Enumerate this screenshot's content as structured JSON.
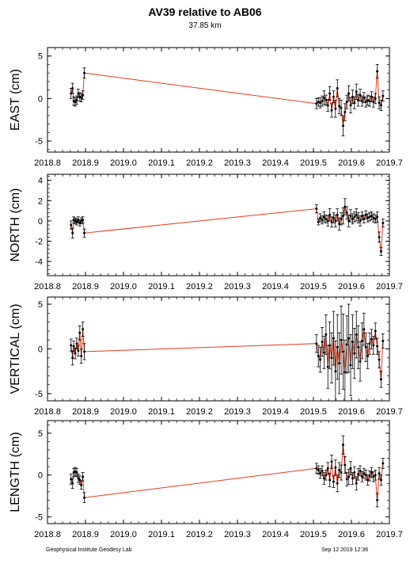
{
  "header": {
    "title": "AV39 relative to AB06",
    "subtitle": "37.85 km"
  },
  "footer": {
    "left": "Geophysical Institute Geodesy Lab",
    "right": "Sep 12 2019 12:36"
  },
  "style": {
    "line_color": "#e8391a",
    "point_color": "#000000",
    "errorbar_color": "#000000"
  },
  "chart_data": [
    {
      "type": "scatter",
      "ylabel": "EAST (cm)",
      "xlim": [
        2018.8,
        2019.7
      ],
      "ylim": [
        -6.3,
        6
      ],
      "xticks": [
        2018.8,
        2018.9,
        2019.0,
        2019.1,
        2019.2,
        2019.3,
        2019.4,
        2019.5,
        2019.6,
        2019.7
      ],
      "xticklabels": [
        "2018.8",
        "2018.9",
        "2019.0",
        "2019.1",
        "2019.2",
        "2019.3",
        "2019.4",
        "2019.5",
        "2019.6",
        "2019.7"
      ],
      "yticks": [
        -5,
        0,
        5
      ],
      "yticklabels": [
        "-5",
        "0",
        "5"
      ],
      "x": [
        2018.862,
        2018.866,
        2018.869,
        2018.873,
        2018.877,
        2018.881,
        2018.885,
        2018.889,
        2018.893,
        2018.897,
        2019.508,
        2019.513,
        2019.518,
        2019.523,
        2019.528,
        2019.533,
        2019.538,
        2019.543,
        2019.548,
        2019.553,
        2019.558,
        2019.563,
        2019.568,
        2019.573,
        2019.578,
        2019.583,
        2019.588,
        2019.593,
        2019.598,
        2019.603,
        2019.608,
        2019.613,
        2019.618,
        2019.623,
        2019.628,
        2019.633,
        2019.638,
        2019.643,
        2019.648,
        2019.653,
        2019.658,
        2019.663,
        2019.668,
        2019.673,
        2019.678,
        2019.683
      ],
      "y": [
        0.6,
        1.2,
        -0.3,
        -0.4,
        -0.2,
        0.6,
        0.2,
        0.1,
        0.4,
        3.0,
        -0.6,
        -0.4,
        -0.5,
        -0.3,
        0.1,
        -0.2,
        -0.8,
        0.6,
        -1.4,
        0.2,
        -1.2,
        1.2,
        -0.9,
        -1.1,
        -3.2,
        -1.6,
        -0.4,
        0.6,
        -0.8,
        0.2,
        -0.5,
        0.8,
        -0.2,
        0.4,
        -0.3,
        0.1,
        -0.4,
        -0.2,
        -0.3,
        0.2,
        -0.4,
        0.0,
        3.2,
        -0.5,
        -0.8,
        0.3
      ],
      "err": [
        0.6,
        0.6,
        0.5,
        0.5,
        0.5,
        0.5,
        0.5,
        0.5,
        0.5,
        0.6,
        0.6,
        0.5,
        0.6,
        0.6,
        0.8,
        0.6,
        0.7,
        0.8,
        0.8,
        0.7,
        1.0,
        1.0,
        0.9,
        0.9,
        1.2,
        1.0,
        0.8,
        0.9,
        0.9,
        0.8,
        0.7,
        0.9,
        0.7,
        0.7,
        0.6,
        0.6,
        0.6,
        0.6,
        0.6,
        0.6,
        0.6,
        0.6,
        0.8,
        0.7,
        0.6,
        0.6
      ]
    },
    {
      "type": "scatter",
      "ylabel": "NORTH (cm)",
      "xlim": [
        2018.8,
        2019.7
      ],
      "ylim": [
        -5.4,
        4.6
      ],
      "xticks": [
        2018.8,
        2018.9,
        2019.0,
        2019.1,
        2019.2,
        2019.3,
        2019.4,
        2019.5,
        2019.6,
        2019.7
      ],
      "xticklabels": [
        "2018.8",
        "2018.9",
        "2019.0",
        "2019.1",
        "2019.2",
        "2019.3",
        "2019.4",
        "2019.5",
        "2019.6",
        "2019.7"
      ],
      "yticks": [
        -4,
        -2,
        0,
        2,
        4
      ],
      "yticklabels": [
        "-4",
        "-2",
        "0",
        "2",
        "4"
      ],
      "x": [
        2018.862,
        2018.866,
        2018.869,
        2018.873,
        2018.877,
        2018.881,
        2018.885,
        2018.889,
        2018.893,
        2018.897,
        2019.508,
        2019.513,
        2019.518,
        2019.523,
        2019.528,
        2019.533,
        2019.538,
        2019.543,
        2019.548,
        2019.553,
        2019.558,
        2019.563,
        2019.568,
        2019.573,
        2019.578,
        2019.583,
        2019.588,
        2019.593,
        2019.598,
        2019.603,
        2019.608,
        2019.613,
        2019.618,
        2019.623,
        2019.628,
        2019.633,
        2019.638,
        2019.643,
        2019.648,
        2019.653,
        2019.658,
        2019.663,
        2019.668,
        2019.673,
        2019.678,
        2019.683
      ],
      "y": [
        -0.4,
        -1.2,
        0.1,
        0.0,
        -0.1,
        0.1,
        -0.2,
        0.0,
        0.1,
        -1.2,
        1.2,
        -0.1,
        0.3,
        0.1,
        0.4,
        0.2,
        0.0,
        0.6,
        -0.1,
        0.3,
        0.0,
        0.6,
        -0.3,
        0.2,
        0.5,
        1.4,
        0.8,
        0.0,
        0.5,
        0.2,
        0.4,
        0.6,
        0.3,
        0.0,
        0.5,
        0.2,
        0.6,
        0.3,
        0.4,
        0.5,
        0.3,
        0.2,
        0.4,
        -1.6,
        -3.0,
        -0.2
      ],
      "err": [
        0.4,
        0.5,
        0.3,
        0.3,
        0.3,
        0.3,
        0.3,
        0.3,
        0.3,
        0.4,
        0.4,
        0.3,
        0.4,
        0.4,
        0.5,
        0.4,
        0.5,
        0.6,
        0.5,
        0.5,
        0.6,
        0.6,
        0.6,
        0.6,
        0.8,
        0.8,
        0.6,
        0.6,
        0.6,
        0.5,
        0.5,
        0.6,
        0.5,
        0.5,
        0.4,
        0.4,
        0.4,
        0.4,
        0.4,
        0.4,
        0.4,
        0.4,
        0.5,
        0.5,
        0.4,
        0.4
      ]
    },
    {
      "type": "scatter",
      "ylabel": "VERTICAL (cm)",
      "xlim": [
        2018.8,
        2019.7
      ],
      "ylim": [
        -5.8,
        5.8
      ],
      "xticks": [
        2018.8,
        2018.9,
        2019.0,
        2019.1,
        2019.2,
        2019.3,
        2019.4,
        2019.5,
        2019.6,
        2019.7
      ],
      "xticklabels": [
        "2018.8",
        "2018.9",
        "2019.0",
        "2019.1",
        "2019.2",
        "2019.3",
        "2019.4",
        "2019.5",
        "2019.6",
        "2019.7"
      ],
      "yticks": [
        -5,
        0,
        5
      ],
      "yticklabels": [
        "-5",
        "0",
        "5"
      ],
      "x": [
        2018.862,
        2018.866,
        2018.869,
        2018.873,
        2018.877,
        2018.881,
        2018.885,
        2018.889,
        2018.893,
        2018.897,
        2019.508,
        2019.513,
        2019.518,
        2019.523,
        2019.528,
        2019.533,
        2019.538,
        2019.543,
        2019.548,
        2019.553,
        2019.558,
        2019.563,
        2019.568,
        2019.573,
        2019.578,
        2019.583,
        2019.588,
        2019.593,
        2019.598,
        2019.603,
        2019.608,
        2019.613,
        2019.618,
        2019.623,
        2019.628,
        2019.633,
        2019.638,
        2019.643,
        2019.648,
        2019.653,
        2019.658,
        2019.663,
        2019.668,
        2019.673,
        2019.678,
        2019.683
      ],
      "y": [
        0.4,
        -1.0,
        0.3,
        -0.5,
        0.6,
        -0.2,
        1.8,
        -0.8,
        2.2,
        -0.3,
        0.6,
        -0.8,
        -1.2,
        0.8,
        -0.4,
        1.6,
        -2.0,
        0.4,
        -1.0,
        1.2,
        -2.5,
        0.2,
        -1.6,
        1.0,
        -0.3,
        -2.6,
        0.5,
        1.2,
        -1.8,
        0.8,
        -0.5,
        1.6,
        0.2,
        -1.4,
        0.9,
        2.2,
        0.2,
        -0.8,
        0.6,
        1.1,
        0.4,
        2.0,
        0.3,
        -1.2,
        -3.4,
        0.9
      ],
      "err": [
        0.7,
        0.8,
        0.6,
        0.6,
        0.6,
        0.6,
        0.8,
        0.8,
        0.8,
        0.9,
        1.0,
        1.2,
        1.4,
        1.6,
        1.8,
        2.2,
        2.4,
        2.6,
        2.8,
        3.0,
        3.4,
        3.6,
        3.4,
        3.8,
        4.2,
        3.6,
        3.2,
        3.8,
        3.4,
        3.0,
        2.8,
        2.6,
        2.4,
        2.2,
        2.0,
        1.8,
        1.6,
        1.4,
        1.2,
        1.1,
        1.0,
        0.9,
        0.9,
        0.9,
        0.9,
        0.8
      ]
    },
    {
      "type": "scatter",
      "ylabel": "LENGTH (cm)",
      "xlim": [
        2018.8,
        2019.7
      ],
      "ylim": [
        -5.8,
        6.5
      ],
      "xticks": [
        2018.8,
        2018.9,
        2019.0,
        2019.1,
        2019.2,
        2019.3,
        2019.4,
        2019.5,
        2019.6,
        2019.7
      ],
      "xticklabels": [
        "2018.8",
        "2018.9",
        "2019.0",
        "2019.1",
        "2019.2",
        "2019.3",
        "2019.4",
        "2019.5",
        "2019.6",
        "2019.7"
      ],
      "yticks": [
        -5,
        0,
        5
      ],
      "yticklabels": [
        "-5",
        "0",
        "5"
      ],
      "x": [
        2018.862,
        2018.866,
        2018.869,
        2018.873,
        2018.877,
        2018.881,
        2018.885,
        2018.889,
        2018.893,
        2018.897,
        2019.508,
        2019.513,
        2019.518,
        2019.523,
        2019.528,
        2019.533,
        2019.538,
        2019.543,
        2019.548,
        2019.553,
        2019.558,
        2019.563,
        2019.568,
        2019.573,
        2019.578,
        2019.583,
        2019.588,
        2019.593,
        2019.598,
        2019.603,
        2019.608,
        2019.613,
        2019.618,
        2019.623,
        2019.628,
        2019.633,
        2019.638,
        2019.643,
        2019.648,
        2019.653,
        2019.658,
        2019.663,
        2019.668,
        2019.673,
        2019.678,
        2019.683
      ],
      "y": [
        -0.5,
        -1.0,
        0.3,
        0.4,
        0.3,
        -0.4,
        -0.6,
        -1.2,
        -0.2,
        -2.7,
        0.8,
        0.6,
        0.2,
        0.5,
        -0.4,
        0.0,
        0.8,
        -0.6,
        1.6,
        -0.8,
        0.9,
        -1.0,
        0.6,
        0.3,
        3.6,
        1.2,
        -0.5,
        -0.2,
        0.8,
        -0.4,
        0.3,
        -1.0,
        0.1,
        0.5,
        -0.2,
        0.2,
        0.0,
        -0.6,
        -0.1,
        0.3,
        -0.2,
        0.0,
        -3.0,
        0.2,
        -0.6,
        1.4
      ],
      "err": [
        0.6,
        0.6,
        0.5,
        0.5,
        0.5,
        0.5,
        0.5,
        0.5,
        0.5,
        0.6,
        0.6,
        0.5,
        0.6,
        0.6,
        0.7,
        0.6,
        0.7,
        0.8,
        0.8,
        0.7,
        0.9,
        1.0,
        0.9,
        0.9,
        1.1,
        1.0,
        0.8,
        0.9,
        0.8,
        0.7,
        0.7,
        0.8,
        0.7,
        0.6,
        0.6,
        0.6,
        0.6,
        0.6,
        0.6,
        0.6,
        0.6,
        0.6,
        0.8,
        0.7,
        0.6,
        0.6
      ]
    }
  ]
}
